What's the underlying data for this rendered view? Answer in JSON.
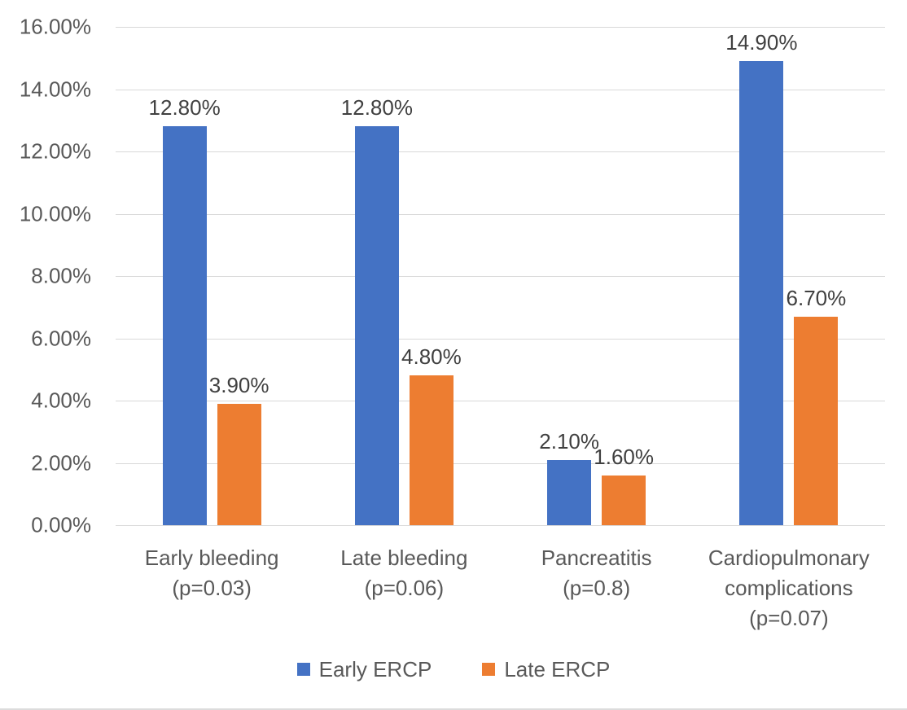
{
  "chart_data": {
    "type": "bar",
    "title": "",
    "categories": [
      "Early bleeding\n(p=0.03)",
      "Late bleeding\n(p=0.06)",
      "Pancreatitis\n(p=0.8)",
      "Cardiopulmonary\ncomplications\n(p=0.07)"
    ],
    "series": [
      {
        "name": "Early ERCP",
        "color": "#4472C4",
        "values": [
          12.8,
          12.8,
          2.1,
          14.9
        ],
        "data_labels": [
          "12.80%",
          "12.80%",
          "2.10%",
          "14.90%"
        ]
      },
      {
        "name": "Late ERCP",
        "color": "#ED7D31",
        "values": [
          3.9,
          4.8,
          1.6,
          6.7
        ],
        "data_labels": [
          "3.90%",
          "4.80%",
          "1.60%",
          "6.70%"
        ]
      }
    ],
    "y_axis": {
      "min": 0,
      "max": 16,
      "step": 2,
      "tick_labels": [
        "0.00%",
        "2.00%",
        "4.00%",
        "6.00%",
        "8.00%",
        "10.00%",
        "12.00%",
        "14.00%",
        "16.00%"
      ]
    },
    "xlabel": "",
    "ylabel": "",
    "grid": true,
    "legend_position": "bottom",
    "style": {
      "gridline_color": "#D9D9D9",
      "axis_text_color": "#595959",
      "data_label_color": "#404040",
      "background_color": "#FFFFFF"
    }
  }
}
